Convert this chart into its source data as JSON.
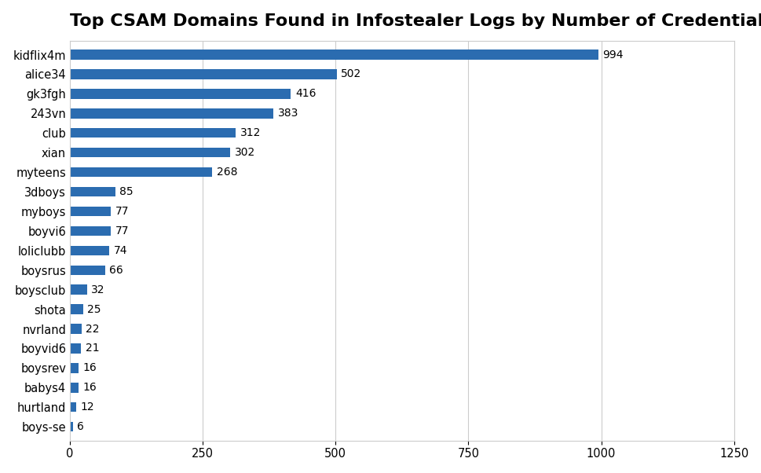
{
  "title": "Top CSAM Domains Found in Infostealer Logs by Number of Credentials",
  "categories": [
    "boys-se",
    "hurtland",
    "babys4",
    "boysrev",
    "boyvid6",
    "nvrland",
    "shota",
    "boysclub",
    "boysrus",
    "loliclubb",
    "boyvi6",
    "myboys",
    "3dboys",
    "myteens",
    "xian",
    "club",
    "243vn",
    "gk3fgh",
    "alice34",
    "kidflix4m"
  ],
  "values": [
    6,
    12,
    16,
    16,
    21,
    22,
    25,
    32,
    66,
    74,
    77,
    77,
    85,
    268,
    302,
    312,
    383,
    416,
    502,
    994
  ],
  "bar_color": "#2B6CB0",
  "bar_edge_color": "none",
  "xlim": [
    0,
    1250
  ],
  "xticks": [
    0,
    250,
    500,
    750,
    1000,
    1250
  ],
  "title_fontsize": 16,
  "label_fontsize": 10.5,
  "tick_fontsize": 10.5,
  "value_fontsize": 10,
  "bar_height": 0.5,
  "background_color": "#ffffff",
  "grid_color": "#cccccc"
}
